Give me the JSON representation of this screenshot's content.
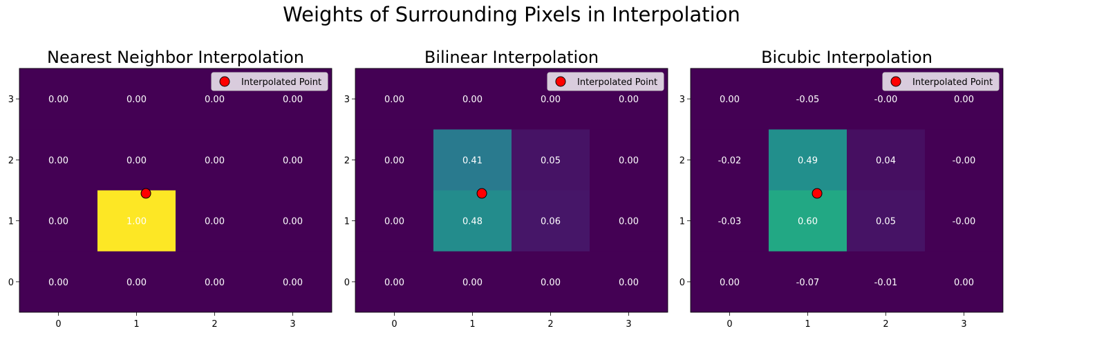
{
  "figure": {
    "suptitle": "Weights of Surrounding Pixels in Interpolation"
  },
  "chart_data": [
    {
      "type": "heatmap",
      "title": "Nearest Neighbor Interpolation",
      "x_ticks": [
        "0",
        "1",
        "2",
        "3"
      ],
      "y_ticks": [
        "0",
        "1",
        "2",
        "3"
      ],
      "xlim": [
        -0.5,
        3.5
      ],
      "ylim": [
        -0.5,
        3.5
      ],
      "colormap": "viridis",
      "vmin": 0,
      "vmax": 1,
      "grid": false,
      "values": [
        [
          0.0,
          0.0,
          0.0,
          0.0
        ],
        [
          0.0,
          1.0,
          0.0,
          0.0
        ],
        [
          0.0,
          0.0,
          0.0,
          0.0
        ],
        [
          0.0,
          0.0,
          0.0,
          0.0
        ]
      ],
      "labels": [
        [
          "0.00",
          "0.00",
          "0.00",
          "0.00"
        ],
        [
          "0.00",
          "1.00",
          "0.00",
          "0.00"
        ],
        [
          "0.00",
          "0.00",
          "0.00",
          "0.00"
        ],
        [
          "0.00",
          "0.00",
          "0.00",
          "0.00"
        ]
      ],
      "point": {
        "x": 1.12,
        "y": 1.45,
        "color": "#ff0000"
      },
      "legend": {
        "label": "Interpolated Point",
        "position": "top-right"
      }
    },
    {
      "type": "heatmap",
      "title": "Bilinear Interpolation",
      "x_ticks": [
        "0",
        "1",
        "2",
        "3"
      ],
      "y_ticks": [
        "0",
        "1",
        "2",
        "3"
      ],
      "xlim": [
        -0.5,
        3.5
      ],
      "ylim": [
        -0.5,
        3.5
      ],
      "colormap": "viridis",
      "vmin": 0,
      "vmax": 1,
      "grid": false,
      "values": [
        [
          0.0,
          0.0,
          0.0,
          0.0
        ],
        [
          0.0,
          0.48,
          0.06,
          0.0
        ],
        [
          0.0,
          0.41,
          0.05,
          0.0
        ],
        [
          0.0,
          0.0,
          0.0,
          0.0
        ]
      ],
      "labels": [
        [
          "0.00",
          "0.00",
          "0.00",
          "0.00"
        ],
        [
          "0.00",
          "0.48",
          "0.06",
          "0.00"
        ],
        [
          "0.00",
          "0.41",
          "0.05",
          "0.00"
        ],
        [
          "0.00",
          "0.00",
          "0.00",
          "0.00"
        ]
      ],
      "point": {
        "x": 1.12,
        "y": 1.45,
        "color": "#ff0000"
      },
      "legend": {
        "label": "Interpolated Point",
        "position": "top-right"
      }
    },
    {
      "type": "heatmap",
      "title": "Bicubic Interpolation",
      "x_ticks": [
        "0",
        "1",
        "2",
        "3"
      ],
      "y_ticks": [
        "0",
        "1",
        "2",
        "3"
      ],
      "xlim": [
        -0.5,
        3.5
      ],
      "ylim": [
        -0.5,
        3.5
      ],
      "colormap": "viridis",
      "vmin": 0,
      "vmax": 1,
      "grid": false,
      "values": [
        [
          0.0,
          -0.07,
          -0.01,
          0.0
        ],
        [
          -0.03,
          0.6,
          0.05,
          -0.0
        ],
        [
          -0.02,
          0.49,
          0.04,
          -0.0
        ],
        [
          0.0,
          -0.05,
          -0.0,
          0.0
        ]
      ],
      "labels": [
        [
          "0.00",
          "-0.07",
          "-0.01",
          "0.00"
        ],
        [
          "-0.03",
          "0.60",
          "0.05",
          "-0.00"
        ],
        [
          "-0.02",
          "0.49",
          "0.04",
          "-0.00"
        ],
        [
          "0.00",
          "-0.05",
          "-0.00",
          "0.00"
        ]
      ],
      "point": {
        "x": 1.12,
        "y": 1.45,
        "color": "#ff0000"
      },
      "legend": {
        "label": "Interpolated Point",
        "position": "top-right"
      }
    }
  ]
}
